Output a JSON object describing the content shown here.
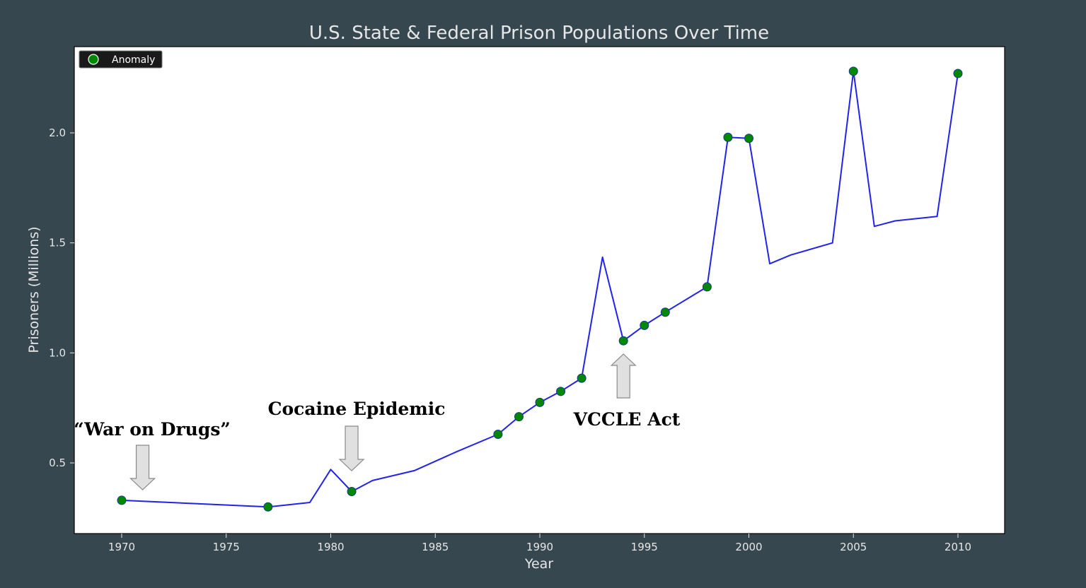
{
  "chart_data": {
    "type": "line",
    "title": "U.S. State & Federal Prison Populations Over Time",
    "xlabel": "Year",
    "ylabel": "Prisoners (Millions)",
    "xlim": [
      1967.7,
      1912.3
    ],
    "ylim": [
      0.18,
      2.4
    ],
    "xticks": [
      1970,
      1975,
      1980,
      1985,
      1990,
      1995,
      2000,
      2005,
      2010
    ],
    "yticks": [
      0.5,
      1.0,
      1.5,
      2.0
    ],
    "xtick_labels": [
      "1970",
      "1975",
      "1980",
      "1985",
      "1990",
      "1995",
      "2000",
      "2005",
      "2010"
    ],
    "ytick_labels": [
      "0.5",
      "1.0",
      "1.5",
      "2.0"
    ],
    "grid": false,
    "series": [
      {
        "color": "#2222ee",
        "x": [
          1970,
          1977,
          1979,
          1980,
          1981,
          1982,
          1984,
          1986,
          1988,
          1989,
          1990,
          1991,
          1992,
          1993,
          1994,
          1995,
          1996,
          1998,
          1999,
          2000,
          2001,
          2002,
          2004,
          2005,
          2006,
          2007,
          2008,
          2009,
          2010
        ],
        "y": [
          0.33,
          0.3,
          0.32,
          0.47,
          0.37,
          0.42,
          0.465,
          0.55,
          0.63,
          0.71,
          0.775,
          0.825,
          0.885,
          1.435,
          1.055,
          1.125,
          1.185,
          1.3,
          1.98,
          1.975,
          1.405,
          1.445,
          1.5,
          2.28,
          1.575,
          1.6,
          1.61,
          1.62,
          2.27
        ]
      }
    ],
    "anomalies": {
      "name": "Anomaly",
      "color": "#008800",
      "x": [
        1970,
        1977,
        1981,
        1988,
        1989,
        1990,
        1991,
        1992,
        1994,
        1995,
        1996,
        1998,
        1999,
        2000,
        2005,
        2010
      ],
      "y": [
        0.33,
        0.3,
        0.37,
        0.63,
        0.71,
        0.775,
        0.825,
        0.885,
        1.055,
        1.125,
        1.185,
        1.3,
        1.98,
        1.975,
        2.28,
        2.27
      ]
    },
    "legend": {
      "placement": "top-left",
      "labels": [
        "Anomaly"
      ]
    },
    "annotations": [
      {
        "text": "“War on Drugs”",
        "year": 1971,
        "arrow": "down"
      },
      {
        "text": "Cocaine Epidemic",
        "year": 1981,
        "arrow": "down"
      },
      {
        "text": "VCCLE Act",
        "year": 1994,
        "arrow": "up"
      }
    ]
  }
}
